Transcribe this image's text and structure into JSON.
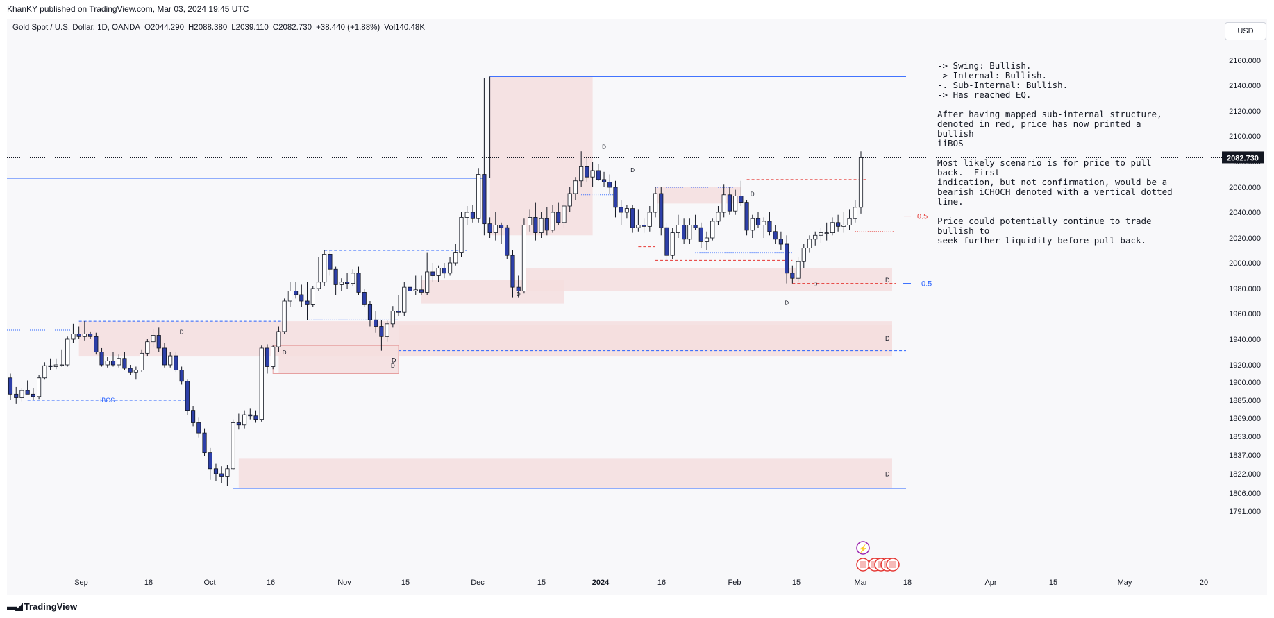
{
  "header": {
    "publisher_line": "KhanKY published on TradingView.com, Mar 03, 2024 19:45 UTC"
  },
  "legend": {
    "symbol": "Gold Spot / U.S. Dollar, 1D, OANDA",
    "open": "O2044.290",
    "high": "H2088.380",
    "low": "L2039.110",
    "close": "C2082.730",
    "change": "+38.440 (+1.88%)",
    "volume": "Vol140.48K"
  },
  "toolbar": {
    "currency_label": "USD"
  },
  "footer": {
    "brand": "TradingView",
    "logo_icon": "tradingview-logo-icon"
  },
  "notes": [
    "-> Swing: Bullish.",
    "-> Internal: Bullish.",
    "-. Sub-Internal: Bullish.",
    "-> Has reached EQ.",
    "",
    "After having mapped sub-internal structure,",
    "denoted in red, price has now printed a bullish",
    "iiBOS",
    "",
    "Most likely scenario is for price to pull back.  First",
    "indication, but not confirmation, would be a",
    "bearish iCHOCH denoted with a vertical dotted",
    "line.",
    "",
    "Price could potentially continue to trade bullish to",
    "seek further liquidity before pull back."
  ],
  "chart_data": {
    "type": "candlestick",
    "symbol": "XAUUSD",
    "timeframe": "1D",
    "y_ticks": [
      "2160.000",
      "2140.000",
      "2120.000",
      "2100.000",
      "2080.000",
      "2060.000",
      "2040.000",
      "2020.000",
      "2000.000",
      "1980.000",
      "1960.000",
      "1940.000",
      "1920.000",
      "1900.000",
      "1885.000",
      "1869.000",
      "1853.000",
      "1837.000",
      "1822.000",
      "1806.000",
      "1791.000"
    ],
    "x_ticks": [
      "Sep",
      "18",
      "Oct",
      "16",
      "Nov",
      "15",
      "Dec",
      "15",
      "2024",
      "16",
      "Feb",
      "15",
      "Mar",
      "18",
      "Apr",
      "15",
      "May",
      "20"
    ],
    "last_price_label": "2082.730",
    "annotations": {
      "ibos_label": "iBOS",
      "fib_red": "0.5",
      "fib_blue": "0.5",
      "demand_label": "D"
    },
    "colors": {
      "up": "#ffffff",
      "down": "#2d3fa8",
      "wick": "#131722",
      "zone": "#f5dede",
      "blue_line": "#2962ff",
      "red_line": "#e53935",
      "price_tag": "#131722"
    },
    "candles": [
      {
        "o": 1905,
        "h": 1910,
        "l": 1885,
        "c": 1890
      },
      {
        "o": 1890,
        "h": 1896,
        "l": 1882,
        "c": 1887
      },
      {
        "o": 1887,
        "h": 1895,
        "l": 1884,
        "c": 1893
      },
      {
        "o": 1893,
        "h": 1902,
        "l": 1890,
        "c": 1890
      },
      {
        "o": 1890,
        "h": 1895,
        "l": 1885,
        "c": 1888
      },
      {
        "o": 1888,
        "h": 1908,
        "l": 1886,
        "c": 1905
      },
      {
        "o": 1905,
        "h": 1922,
        "l": 1903,
        "c": 1919
      },
      {
        "o": 1919,
        "h": 1925,
        "l": 1914,
        "c": 1918
      },
      {
        "o": 1918,
        "h": 1925,
        "l": 1915,
        "c": 1920
      },
      {
        "o": 1920,
        "h": 1932,
        "l": 1918,
        "c": 1920
      },
      {
        "o": 1920,
        "h": 1942,
        "l": 1918,
        "c": 1940
      },
      {
        "o": 1940,
        "h": 1952,
        "l": 1937,
        "c": 1944
      },
      {
        "o": 1944,
        "h": 1950,
        "l": 1940,
        "c": 1942
      },
      {
        "o": 1942,
        "h": 1954,
        "l": 1939,
        "c": 1944
      },
      {
        "o": 1944,
        "h": 1946,
        "l": 1940,
        "c": 1942
      },
      {
        "o": 1942,
        "h": 1945,
        "l": 1928,
        "c": 1930
      },
      {
        "o": 1930,
        "h": 1933,
        "l": 1918,
        "c": 1920
      },
      {
        "o": 1920,
        "h": 1926,
        "l": 1917,
        "c": 1923
      },
      {
        "o": 1923,
        "h": 1930,
        "l": 1918,
        "c": 1920
      },
      {
        "o": 1920,
        "h": 1928,
        "l": 1917,
        "c": 1925
      },
      {
        "o": 1925,
        "h": 1930,
        "l": 1914,
        "c": 1916
      },
      {
        "o": 1916,
        "h": 1920,
        "l": 1908,
        "c": 1911
      },
      {
        "o": 1911,
        "h": 1918,
        "l": 1903,
        "c": 1914
      },
      {
        "o": 1914,
        "h": 1932,
        "l": 1912,
        "c": 1929
      },
      {
        "o": 1929,
        "h": 1940,
        "l": 1927,
        "c": 1938
      },
      {
        "o": 1938,
        "h": 1948,
        "l": 1934,
        "c": 1943
      },
      {
        "o": 1943,
        "h": 1949,
        "l": 1930,
        "c": 1933
      },
      {
        "o": 1933,
        "h": 1937,
        "l": 1917,
        "c": 1920
      },
      {
        "o": 1920,
        "h": 1930,
        "l": 1917,
        "c": 1927
      },
      {
        "o": 1927,
        "h": 1930,
        "l": 1912,
        "c": 1914
      },
      {
        "o": 1914,
        "h": 1918,
        "l": 1898,
        "c": 1901
      },
      {
        "o": 1901,
        "h": 1903,
        "l": 1872,
        "c": 1876
      },
      {
        "o": 1876,
        "h": 1880,
        "l": 1862,
        "c": 1865
      },
      {
        "o": 1865,
        "h": 1870,
        "l": 1852,
        "c": 1856
      },
      {
        "o": 1856,
        "h": 1860,
        "l": 1836,
        "c": 1839
      },
      {
        "o": 1839,
        "h": 1843,
        "l": 1817,
        "c": 1826
      },
      {
        "o": 1826,
        "h": 1830,
        "l": 1816,
        "c": 1822
      },
      {
        "o": 1822,
        "h": 1828,
        "l": 1814,
        "c": 1820
      },
      {
        "o": 1820,
        "h": 1829,
        "l": 1812,
        "c": 1826
      },
      {
        "o": 1826,
        "h": 1868,
        "l": 1825,
        "c": 1865
      },
      {
        "o": 1865,
        "h": 1873,
        "l": 1859,
        "c": 1863
      },
      {
        "o": 1863,
        "h": 1876,
        "l": 1860,
        "c": 1872
      },
      {
        "o": 1872,
        "h": 1878,
        "l": 1868,
        "c": 1871
      },
      {
        "o": 1871,
        "h": 1876,
        "l": 1865,
        "c": 1868
      },
      {
        "o": 1868,
        "h": 1935,
        "l": 1866,
        "c": 1933
      },
      {
        "o": 1933,
        "h": 1936,
        "l": 1910,
        "c": 1918
      },
      {
        "o": 1918,
        "h": 1935,
        "l": 1915,
        "c": 1934
      },
      {
        "o": 1934,
        "h": 1950,
        "l": 1930,
        "c": 1946
      },
      {
        "o": 1946,
        "h": 1972,
        "l": 1944,
        "c": 1970
      },
      {
        "o": 1970,
        "h": 1985,
        "l": 1965,
        "c": 1978
      },
      {
        "o": 1978,
        "h": 1985,
        "l": 1972,
        "c": 1975
      },
      {
        "o": 1975,
        "h": 1983,
        "l": 1965,
        "c": 1970
      },
      {
        "o": 1970,
        "h": 1985,
        "l": 1955,
        "c": 1967
      },
      {
        "o": 1967,
        "h": 1982,
        "l": 1965,
        "c": 1980
      },
      {
        "o": 1980,
        "h": 2005,
        "l": 1978,
        "c": 1985
      },
      {
        "o": 1985,
        "h": 2010,
        "l": 1982,
        "c": 2007
      },
      {
        "o": 2007,
        "h": 2010,
        "l": 1990,
        "c": 1995
      },
      {
        "o": 1995,
        "h": 1997,
        "l": 1975,
        "c": 1983
      },
      {
        "o": 1983,
        "h": 1988,
        "l": 1978,
        "c": 1985
      },
      {
        "o": 1985,
        "h": 1992,
        "l": 1980,
        "c": 1984
      },
      {
        "o": 1984,
        "h": 1995,
        "l": 1982,
        "c": 1992
      },
      {
        "o": 1992,
        "h": 1997,
        "l": 1975,
        "c": 1977
      },
      {
        "o": 1977,
        "h": 1980,
        "l": 1965,
        "c": 1967
      },
      {
        "o": 1967,
        "h": 1970,
        "l": 1950,
        "c": 1955
      },
      {
        "o": 1955,
        "h": 1962,
        "l": 1945,
        "c": 1950
      },
      {
        "o": 1950,
        "h": 1955,
        "l": 1931,
        "c": 1942
      },
      {
        "o": 1942,
        "h": 1955,
        "l": 1938,
        "c": 1952
      },
      {
        "o": 1952,
        "h": 1966,
        "l": 1949,
        "c": 1962
      },
      {
        "o": 1962,
        "h": 1975,
        "l": 1958,
        "c": 1961
      },
      {
        "o": 1961,
        "h": 1985,
        "l": 1958,
        "c": 1981
      },
      {
        "o": 1981,
        "h": 1988,
        "l": 1975,
        "c": 1978
      },
      {
        "o": 1978,
        "h": 1990,
        "l": 1975,
        "c": 1979
      },
      {
        "o": 1979,
        "h": 1990,
        "l": 1975,
        "c": 1977
      },
      {
        "o": 1977,
        "h": 2008,
        "l": 1975,
        "c": 1993
      },
      {
        "o": 1993,
        "h": 2000,
        "l": 1985,
        "c": 1990
      },
      {
        "o": 1990,
        "h": 1998,
        "l": 1985,
        "c": 1996
      },
      {
        "o": 1996,
        "h": 2000,
        "l": 1988,
        "c": 1992
      },
      {
        "o": 1992,
        "h": 2005,
        "l": 1990,
        "c": 2000
      },
      {
        "o": 2000,
        "h": 2015,
        "l": 1998,
        "c": 2008
      },
      {
        "o": 2008,
        "h": 2040,
        "l": 2005,
        "c": 2036
      },
      {
        "o": 2036,
        "h": 2045,
        "l": 2030,
        "c": 2040
      },
      {
        "o": 2040,
        "h": 2046,
        "l": 2032,
        "c": 2035
      },
      {
        "o": 2035,
        "h": 2075,
        "l": 2032,
        "c": 2070
      },
      {
        "o": 2070,
        "h": 2146,
        "l": 2022,
        "c": 2031
      },
      {
        "o": 2031,
        "h": 2036,
        "l": 2020,
        "c": 2024
      },
      {
        "o": 2024,
        "h": 2040,
        "l": 2018,
        "c": 2030
      },
      {
        "o": 2030,
        "h": 2032,
        "l": 2015,
        "c": 2028
      },
      {
        "o": 2028,
        "h": 2030,
        "l": 2003,
        "c": 2006
      },
      {
        "o": 2006,
        "h": 2010,
        "l": 1973,
        "c": 1981
      },
      {
        "o": 1981,
        "h": 1990,
        "l": 1973,
        "c": 1978
      },
      {
        "o": 1978,
        "h": 2035,
        "l": 1976,
        "c": 2030
      },
      {
        "o": 2030,
        "h": 2042,
        "l": 2025,
        "c": 2036
      },
      {
        "o": 2036,
        "h": 2048,
        "l": 2018,
        "c": 2024
      },
      {
        "o": 2024,
        "h": 2040,
        "l": 2020,
        "c": 2035
      },
      {
        "o": 2035,
        "h": 2044,
        "l": 2022,
        "c": 2026
      },
      {
        "o": 2026,
        "h": 2046,
        "l": 2024,
        "c": 2040
      },
      {
        "o": 2040,
        "h": 2048,
        "l": 2030,
        "c": 2032
      },
      {
        "o": 2032,
        "h": 2050,
        "l": 2028,
        "c": 2045
      },
      {
        "o": 2045,
        "h": 2060,
        "l": 2040,
        "c": 2055
      },
      {
        "o": 2055,
        "h": 2068,
        "l": 2050,
        "c": 2065
      },
      {
        "o": 2065,
        "h": 2088,
        "l": 2060,
        "c": 2076
      },
      {
        "o": 2076,
        "h": 2084,
        "l": 2064,
        "c": 2068
      },
      {
        "o": 2068,
        "h": 2080,
        "l": 2060,
        "c": 2073
      },
      {
        "o": 2073,
        "h": 2078,
        "l": 2065,
        "c": 2066
      },
      {
        "o": 2066,
        "h": 2072,
        "l": 2060,
        "c": 2064
      },
      {
        "o": 2064,
        "h": 2070,
        "l": 2055,
        "c": 2060
      },
      {
        "o": 2060,
        "h": 2065,
        "l": 2036,
        "c": 2044
      },
      {
        "o": 2044,
        "h": 2050,
        "l": 2030,
        "c": 2040
      },
      {
        "o": 2040,
        "h": 2046,
        "l": 2035,
        "c": 2043
      },
      {
        "o": 2043,
        "h": 2046,
        "l": 2024,
        "c": 2028
      },
      {
        "o": 2028,
        "h": 2042,
        "l": 2025,
        "c": 2030
      },
      {
        "o": 2030,
        "h": 2035,
        "l": 2024,
        "c": 2029
      },
      {
        "o": 2029,
        "h": 2045,
        "l": 2025,
        "c": 2040
      },
      {
        "o": 2040,
        "h": 2060,
        "l": 2036,
        "c": 2055
      },
      {
        "o": 2055,
        "h": 2060,
        "l": 2022,
        "c": 2028
      },
      {
        "o": 2028,
        "h": 2032,
        "l": 2001,
        "c": 2006
      },
      {
        "o": 2006,
        "h": 2028,
        "l": 2003,
        "c": 2024
      },
      {
        "o": 2024,
        "h": 2038,
        "l": 2020,
        "c": 2030
      },
      {
        "o": 2030,
        "h": 2035,
        "l": 2015,
        "c": 2019
      },
      {
        "o": 2019,
        "h": 2035,
        "l": 2015,
        "c": 2030
      },
      {
        "o": 2030,
        "h": 2038,
        "l": 2026,
        "c": 2028
      },
      {
        "o": 2028,
        "h": 2032,
        "l": 2012,
        "c": 2017
      },
      {
        "o": 2017,
        "h": 2025,
        "l": 2010,
        "c": 2020
      },
      {
        "o": 2020,
        "h": 2035,
        "l": 2018,
        "c": 2033
      },
      {
        "o": 2033,
        "h": 2045,
        "l": 2030,
        "c": 2040
      },
      {
        "o": 2040,
        "h": 2062,
        "l": 2036,
        "c": 2054
      },
      {
        "o": 2054,
        "h": 2060,
        "l": 2038,
        "c": 2041
      },
      {
        "o": 2041,
        "h": 2058,
        "l": 2038,
        "c": 2053
      },
      {
        "o": 2053,
        "h": 2065,
        "l": 2045,
        "c": 2048
      },
      {
        "o": 2048,
        "h": 2050,
        "l": 2022,
        "c": 2026
      },
      {
        "o": 2026,
        "h": 2038,
        "l": 2020,
        "c": 2035
      },
      {
        "o": 2035,
        "h": 2040,
        "l": 2028,
        "c": 2030
      },
      {
        "o": 2030,
        "h": 2036,
        "l": 2020,
        "c": 2033
      },
      {
        "o": 2033,
        "h": 2040,
        "l": 2022,
        "c": 2025
      },
      {
        "o": 2025,
        "h": 2030,
        "l": 2015,
        "c": 2019
      },
      {
        "o": 2019,
        "h": 2025,
        "l": 2010,
        "c": 2015
      },
      {
        "o": 2015,
        "h": 2022,
        "l": 1984,
        "c": 1992
      },
      {
        "o": 1992,
        "h": 1998,
        "l": 1984,
        "c": 1988
      },
      {
        "o": 1988,
        "h": 2005,
        "l": 1985,
        "c": 2001
      },
      {
        "o": 2001,
        "h": 2015,
        "l": 1996,
        "c": 2012
      },
      {
        "o": 2012,
        "h": 2022,
        "l": 2008,
        "c": 2019
      },
      {
        "o": 2019,
        "h": 2025,
        "l": 2014,
        "c": 2022
      },
      {
        "o": 2022,
        "h": 2028,
        "l": 2016,
        "c": 2024
      },
      {
        "o": 2024,
        "h": 2032,
        "l": 2018,
        "c": 2024
      },
      {
        "o": 2024,
        "h": 2036,
        "l": 2022,
        "c": 2032
      },
      {
        "o": 2032,
        "h": 2038,
        "l": 2025,
        "c": 2029
      },
      {
        "o": 2029,
        "h": 2040,
        "l": 2024,
        "c": 2030
      },
      {
        "o": 2030,
        "h": 2042,
        "l": 2026,
        "c": 2035
      },
      {
        "o": 2035,
        "h": 2050,
        "l": 2032,
        "c": 2044
      },
      {
        "o": 2044,
        "h": 2088,
        "l": 2039,
        "c": 2083
      }
    ]
  }
}
